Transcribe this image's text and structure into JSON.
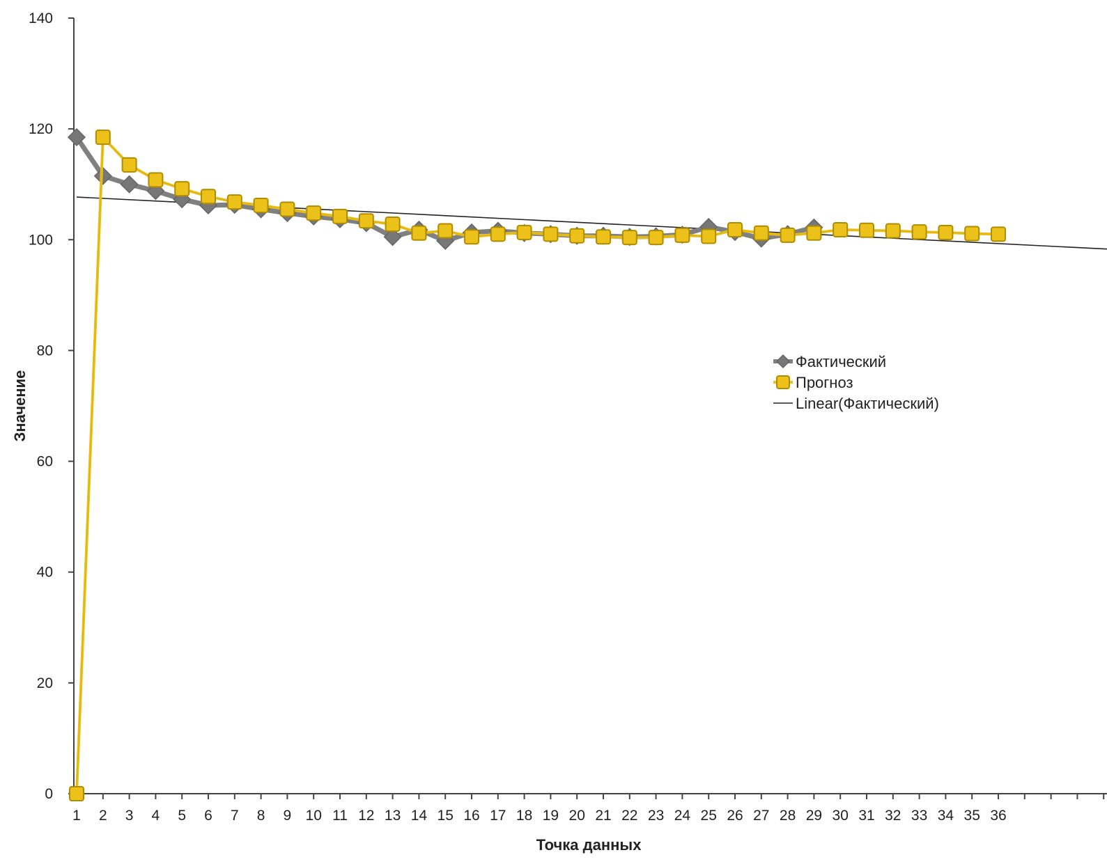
{
  "chart_data": {
    "type": "line",
    "title": "",
    "xlabel": "Точка данных",
    "ylabel": "Значение",
    "xlim": [
      1,
      41
    ],
    "ylim": [
      0,
      140
    ],
    "ytick_values": [
      0,
      20,
      40,
      60,
      80,
      100,
      120,
      140
    ],
    "xtick_labels": [
      "1",
      "2",
      "3",
      "4",
      "5",
      "6",
      "7",
      "8",
      "9",
      "10",
      "11",
      "12",
      "13",
      "14",
      "15",
      "16",
      "17",
      "18",
      "19",
      "20",
      "21",
      "22",
      "23",
      "24",
      "25",
      "26",
      "27",
      "28",
      "29",
      "30",
      "31",
      "32",
      "33",
      "34",
      "35",
      "36"
    ],
    "grid": false,
    "legend_position": "right-center",
    "series": [
      {
        "name": "Фактический",
        "color": "#808080",
        "marker": "diamond",
        "x": [
          1,
          2,
          3,
          4,
          5,
          6,
          7,
          8,
          9,
          10,
          11,
          12,
          13,
          14,
          15,
          16,
          17,
          18,
          19,
          20,
          21,
          22,
          23,
          24,
          25,
          26,
          27,
          28,
          29
        ],
        "values": [
          118.5,
          111.5,
          110.0,
          108.8,
          107.3,
          106.2,
          106.3,
          105.5,
          104.8,
          104.2,
          103.7,
          103.0,
          100.5,
          101.8,
          99.8,
          101.3,
          101.6,
          101.2,
          101.0,
          100.7,
          100.7,
          100.5,
          100.6,
          100.9,
          102.3,
          101.4,
          100.2,
          101.0,
          102.2
        ]
      },
      {
        "name": "Прогноз",
        "color": "#EBC11A",
        "marker": "square",
        "x": [
          1,
          2,
          3,
          4,
          5,
          6,
          7,
          8,
          9,
          10,
          11,
          12,
          13,
          14,
          15,
          16,
          17,
          18,
          19,
          20,
          21,
          22,
          23,
          24,
          25,
          26,
          27,
          28,
          29,
          30,
          31,
          32,
          33,
          34,
          35,
          36
        ],
        "values": [
          0,
          118.5,
          113.5,
          110.8,
          109.2,
          107.8,
          106.8,
          106.2,
          105.5,
          104.8,
          104.2,
          103.4,
          102.8,
          101.2,
          101.6,
          100.5,
          101.0,
          101.3,
          101.0,
          100.7,
          100.5,
          100.4,
          100.4,
          100.8,
          100.6,
          101.8,
          101.2,
          100.8,
          101.2,
          101.8,
          101.7,
          101.6,
          101.4,
          101.3,
          101.1,
          101.0
        ]
      },
      {
        "name": "Linear(Фактический)",
        "color": "#222222",
        "marker": "none",
        "type": "trendline",
        "x": [
          1,
          41
        ],
        "values": [
          107.7,
          98.1
        ]
      }
    ]
  }
}
